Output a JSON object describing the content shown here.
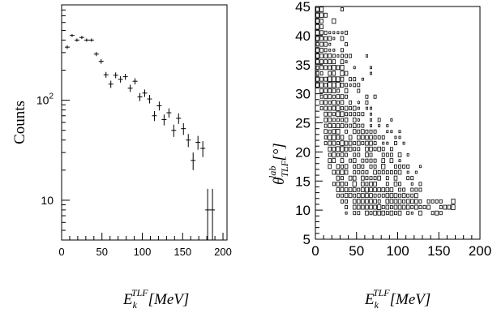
{
  "chart_data": [
    {
      "type": "scatter",
      "panel": "left",
      "xlabel": {
        "base": "E",
        "sub": "k",
        "sup": "TLF",
        "bracket": "[MeV]"
      },
      "ylabel": "Counts",
      "xlim": [
        0,
        205
      ],
      "ylim": [
        4,
        900
      ],
      "yscale": "log",
      "xticks": [
        {
          "value": 0,
          "label": "0"
        },
        {
          "value": 50,
          "label": "50"
        },
        {
          "value": 100,
          "label": "100"
        },
        {
          "value": 150,
          "label": "150"
        },
        {
          "value": 200,
          "label": "200"
        }
      ],
      "yticks": [
        {
          "value": 10,
          "label": "10",
          "exp": ""
        },
        {
          "value": 100,
          "label": "10",
          "exp": "2"
        }
      ],
      "grid": false,
      "points": [
        {
          "x": 7,
          "y": 340,
          "ex": 3,
          "ey": 14
        },
        {
          "x": 13,
          "y": 445,
          "ex": 3,
          "ey": 15
        },
        {
          "x": 19,
          "y": 400,
          "ex": 3,
          "ey": 15
        },
        {
          "x": 25,
          "y": 425,
          "ex": 3,
          "ey": 15
        },
        {
          "x": 31,
          "y": 400,
          "ex": 3,
          "ey": 15
        },
        {
          "x": 37,
          "y": 400,
          "ex": 3,
          "ey": 15
        },
        {
          "x": 43,
          "y": 290,
          "ex": 3,
          "ey": 14
        },
        {
          "x": 49,
          "y": 245,
          "ex": 3,
          "ey": 13
        },
        {
          "x": 55,
          "y": 180,
          "ex": 3,
          "ey": 12
        },
        {
          "x": 61,
          "y": 145,
          "ex": 3,
          "ey": 12
        },
        {
          "x": 67,
          "y": 178,
          "ex": 3,
          "ey": 12
        },
        {
          "x": 73,
          "y": 162,
          "ex": 3,
          "ey": 12
        },
        {
          "x": 79,
          "y": 172,
          "ex": 3,
          "ey": 12
        },
        {
          "x": 85,
          "y": 132,
          "ex": 3,
          "ey": 11
        },
        {
          "x": 91,
          "y": 155,
          "ex": 3,
          "ey": 11
        },
        {
          "x": 97,
          "y": 108,
          "ex": 3,
          "ey": 10
        },
        {
          "x": 103,
          "y": 118,
          "ex": 3,
          "ey": 10
        },
        {
          "x": 109,
          "y": 103,
          "ex": 3,
          "ey": 10
        },
        {
          "x": 115,
          "y": 70,
          "ex": 3,
          "ey": 8
        },
        {
          "x": 121,
          "y": 88,
          "ex": 3,
          "ey": 9
        },
        {
          "x": 127,
          "y": 64,
          "ex": 3,
          "ey": 8
        },
        {
          "x": 133,
          "y": 75,
          "ex": 3,
          "ey": 8
        },
        {
          "x": 139,
          "y": 50,
          "ex": 3,
          "ey": 7
        },
        {
          "x": 145,
          "y": 66,
          "ex": 3,
          "ey": 8
        },
        {
          "x": 151,
          "y": 52,
          "ex": 3,
          "ey": 7
        },
        {
          "x": 157,
          "y": 40,
          "ex": 3,
          "ey": 6
        },
        {
          "x": 163,
          "y": 25,
          "ex": 3,
          "ey": 5
        },
        {
          "x": 169,
          "y": 38,
          "ex": 3,
          "ey": 6
        },
        {
          "x": 175,
          "y": 33,
          "ex": 3,
          "ey": 6
        },
        {
          "x": 181,
          "y": 8,
          "ex": 3,
          "ey": 5
        },
        {
          "x": 187,
          "y": 8,
          "ex": 3,
          "ey": 5
        }
      ]
    },
    {
      "type": "heatmap",
      "panel": "right",
      "xlabel": {
        "base": "E",
        "sub": "k",
        "sup": "TLF",
        "bracket": "[MeV]"
      },
      "ylabel": {
        "base": "θ",
        "sub": "TLF",
        "sup": "lab",
        "bracket": "[°]"
      },
      "xlim": [
        0,
        200
      ],
      "ylim": [
        5,
        45
      ],
      "xticks": [
        {
          "value": 0,
          "label": "0"
        },
        {
          "value": 50,
          "label": "50"
        },
        {
          "value": 100,
          "label": "100"
        },
        {
          "value": 150,
          "label": "150"
        },
        {
          "value": 200,
          "label": "200"
        }
      ],
      "yticks": [
        {
          "value": 5,
          "label": "5"
        },
        {
          "value": 10,
          "label": "10"
        },
        {
          "value": 15,
          "label": "15"
        },
        {
          "value": 20,
          "label": "20"
        },
        {
          "value": 25,
          "label": "25"
        },
        {
          "value": 30,
          "label": "30"
        },
        {
          "value": 35,
          "label": "35"
        },
        {
          "value": 40,
          "label": "40"
        },
        {
          "value": 45,
          "label": "45"
        }
      ],
      "grid": false,
      "bin_x": 5,
      "bin_y": 1,
      "rows": [
        {
          "theta": 44,
          "counts": [
            3,
            4,
            0,
            0,
            0,
            0,
            2
          ]
        },
        {
          "theta": 43,
          "counts": [
            3,
            4,
            3,
            0,
            0,
            0
          ]
        },
        {
          "theta": 42,
          "counts": [
            3,
            3,
            0,
            0,
            4
          ]
        },
        {
          "theta": 41,
          "counts": [
            4,
            3,
            0
          ]
        },
        {
          "theta": 40,
          "counts": [
            4,
            3,
            2,
            1,
            1,
            1,
            1,
            2
          ]
        },
        {
          "theta": 39,
          "counts": [
            3,
            3,
            3,
            3,
            1,
            0,
            3
          ]
        },
        {
          "theta": 38,
          "counts": [
            2,
            3,
            3,
            1,
            0,
            0,
            0,
            2
          ]
        },
        {
          "theta": 37,
          "counts": [
            3,
            3,
            2,
            1,
            1,
            0,
            2
          ]
        },
        {
          "theta": 36,
          "counts": [
            3,
            3,
            3,
            3,
            2,
            1,
            2,
            2,
            2,
            0,
            0,
            0,
            1
          ]
        },
        {
          "theta": 35,
          "counts": [
            3,
            3,
            3,
            3,
            3,
            0,
            3,
            1
          ]
        },
        {
          "theta": 34,
          "counts": [
            2,
            3,
            3,
            3,
            4,
            3,
            4,
            0,
            0,
            1,
            0,
            0,
            0,
            1
          ]
        },
        {
          "theta": 33,
          "counts": [
            2,
            2,
            0,
            3,
            3,
            0,
            4,
            3,
            0,
            0,
            0,
            0,
            0,
            1
          ]
        },
        {
          "theta": 32,
          "counts": [
            3,
            3,
            3,
            4,
            4,
            4,
            3,
            0,
            2,
            2,
            0,
            1
          ]
        },
        {
          "theta": 31,
          "counts": [
            3,
            4,
            3,
            5,
            4,
            5,
            3,
            2,
            1,
            2,
            2
          ]
        },
        {
          "theta": 30,
          "counts": [
            0,
            3,
            3,
            3,
            3,
            2,
            0,
            3,
            0,
            0,
            2
          ]
        },
        {
          "theta": 29,
          "counts": [
            0,
            2,
            3,
            3,
            2,
            3,
            3,
            2,
            0,
            0,
            0,
            0,
            2,
            0,
            2
          ]
        },
        {
          "theta": 28,
          "counts": [
            0,
            3,
            3,
            2,
            4,
            2,
            3,
            0,
            2,
            0,
            1,
            0,
            2
          ]
        },
        {
          "theta": 27,
          "counts": [
            0,
            2,
            3,
            3,
            3,
            4,
            2,
            3,
            2,
            3,
            1,
            0,
            1,
            1
          ]
        },
        {
          "theta": 26,
          "counts": [
            0,
            0,
            3,
            3,
            2,
            4,
            4,
            2,
            2,
            2,
            2,
            2,
            0,
            1
          ]
        },
        {
          "theta": 25,
          "counts": [
            0,
            0,
            3,
            3,
            2,
            2,
            2,
            3,
            0,
            3,
            1,
            0,
            0,
            1,
            0,
            2,
            0,
            0,
            1
          ]
        },
        {
          "theta": 24,
          "counts": [
            0,
            0,
            2,
            3,
            3,
            3,
            3,
            2,
            2,
            3,
            2,
            2,
            0,
            1,
            0,
            1,
            0,
            1
          ]
        },
        {
          "theta": 23,
          "counts": [
            0,
            0,
            3,
            2,
            3,
            4,
            0,
            2,
            0,
            3,
            2,
            3,
            2,
            2,
            2,
            0,
            0,
            1,
            1,
            0,
            1
          ]
        },
        {
          "theta": 22,
          "counts": [
            0,
            0,
            2,
            4,
            4,
            3,
            3,
            0,
            3,
            0,
            3,
            3,
            3,
            3,
            2,
            2,
            2,
            0,
            0,
            1,
            1
          ]
        },
        {
          "theta": 21,
          "counts": [
            0,
            0,
            2,
            3,
            3,
            2,
            4,
            3,
            3,
            2,
            3,
            2,
            3,
            3,
            2,
            0,
            1,
            1,
            0,
            2,
            0,
            1
          ]
        },
        {
          "theta": 20,
          "counts": [
            0,
            0,
            0,
            3,
            3,
            4,
            4,
            3,
            3,
            2,
            2,
            0,
            3,
            3,
            2,
            3,
            2,
            0,
            2
          ]
        },
        {
          "theta": 19,
          "counts": [
            0,
            0,
            0,
            2,
            4,
            2,
            3,
            2,
            0,
            2,
            2,
            0,
            3,
            2,
            0,
            0,
            2,
            2,
            2,
            0,
            3,
            0,
            1
          ]
        },
        {
          "theta": 18,
          "counts": [
            0,
            0,
            0,
            3,
            3,
            0,
            3,
            0,
            2,
            3,
            0,
            2,
            2,
            2,
            2,
            0,
            3,
            0,
            3,
            0,
            1
          ]
        },
        {
          "theta": 17,
          "counts": [
            0,
            0,
            0,
            3,
            0,
            3,
            2,
            3,
            0,
            2,
            3,
            2,
            0,
            2,
            2,
            0,
            4,
            0,
            0,
            2,
            2,
            2,
            2,
            0,
            0,
            1
          ]
        },
        {
          "theta": 16,
          "counts": [
            0,
            0,
            0,
            0,
            3,
            3,
            4,
            3,
            0,
            2,
            2,
            2,
            2,
            0,
            3,
            2,
            2,
            2,
            2,
            2,
            3,
            0,
            1,
            0,
            1
          ]
        },
        {
          "theta": 15,
          "counts": [
            0,
            0,
            0,
            0,
            0,
            3,
            2,
            0,
            3,
            3,
            0,
            3,
            2,
            2,
            2,
            3,
            0,
            2,
            0,
            3,
            0,
            0,
            2,
            2
          ]
        },
        {
          "theta": 14,
          "counts": [
            0,
            0,
            0,
            0,
            2,
            3,
            3,
            2,
            0,
            4,
            0,
            3,
            2,
            3,
            3,
            0,
            0,
            2,
            0,
            3,
            2,
            0,
            0,
            1,
            0,
            2
          ]
        },
        {
          "theta": 13,
          "counts": [
            0,
            0,
            0,
            0,
            0,
            3,
            3,
            3,
            3,
            3,
            2,
            3,
            4,
            3,
            3,
            3,
            3,
            3,
            3,
            0,
            2,
            2,
            0,
            2,
            2,
            2
          ]
        },
        {
          "theta": 12,
          "counts": [
            0,
            0,
            0,
            0,
            0,
            2,
            2,
            3,
            3,
            2,
            3,
            3,
            3,
            3,
            2,
            2,
            2,
            3,
            3,
            3,
            2,
            3,
            2,
            2,
            3
          ]
        },
        {
          "theta": 11,
          "counts": [
            0,
            0,
            0,
            0,
            0,
            0,
            2,
            2,
            0,
            3,
            3,
            3,
            3,
            3,
            3,
            2,
            0,
            3,
            3,
            3,
            3,
            2,
            3,
            3,
            3,
            2,
            0,
            2,
            2,
            2,
            2,
            0,
            0,
            4
          ]
        },
        {
          "theta": 10,
          "counts": [
            0,
            0,
            0,
            0,
            0,
            0,
            0,
            2,
            0,
            3,
            3,
            3,
            3,
            3,
            3,
            4,
            2,
            3,
            2,
            3,
            3,
            3,
            3,
            2,
            3,
            2,
            2,
            3,
            0,
            0,
            2,
            3,
            3,
            4
          ]
        },
        {
          "theta": 9,
          "counts": [
            0,
            0,
            0,
            0,
            0,
            0,
            0,
            1,
            0,
            2,
            2,
            0,
            3,
            2,
            3,
            3,
            3,
            2,
            3,
            2,
            3,
            0,
            2,
            1,
            0,
            3,
            0,
            0,
            2,
            3,
            2
          ]
        }
      ]
    }
  ]
}
